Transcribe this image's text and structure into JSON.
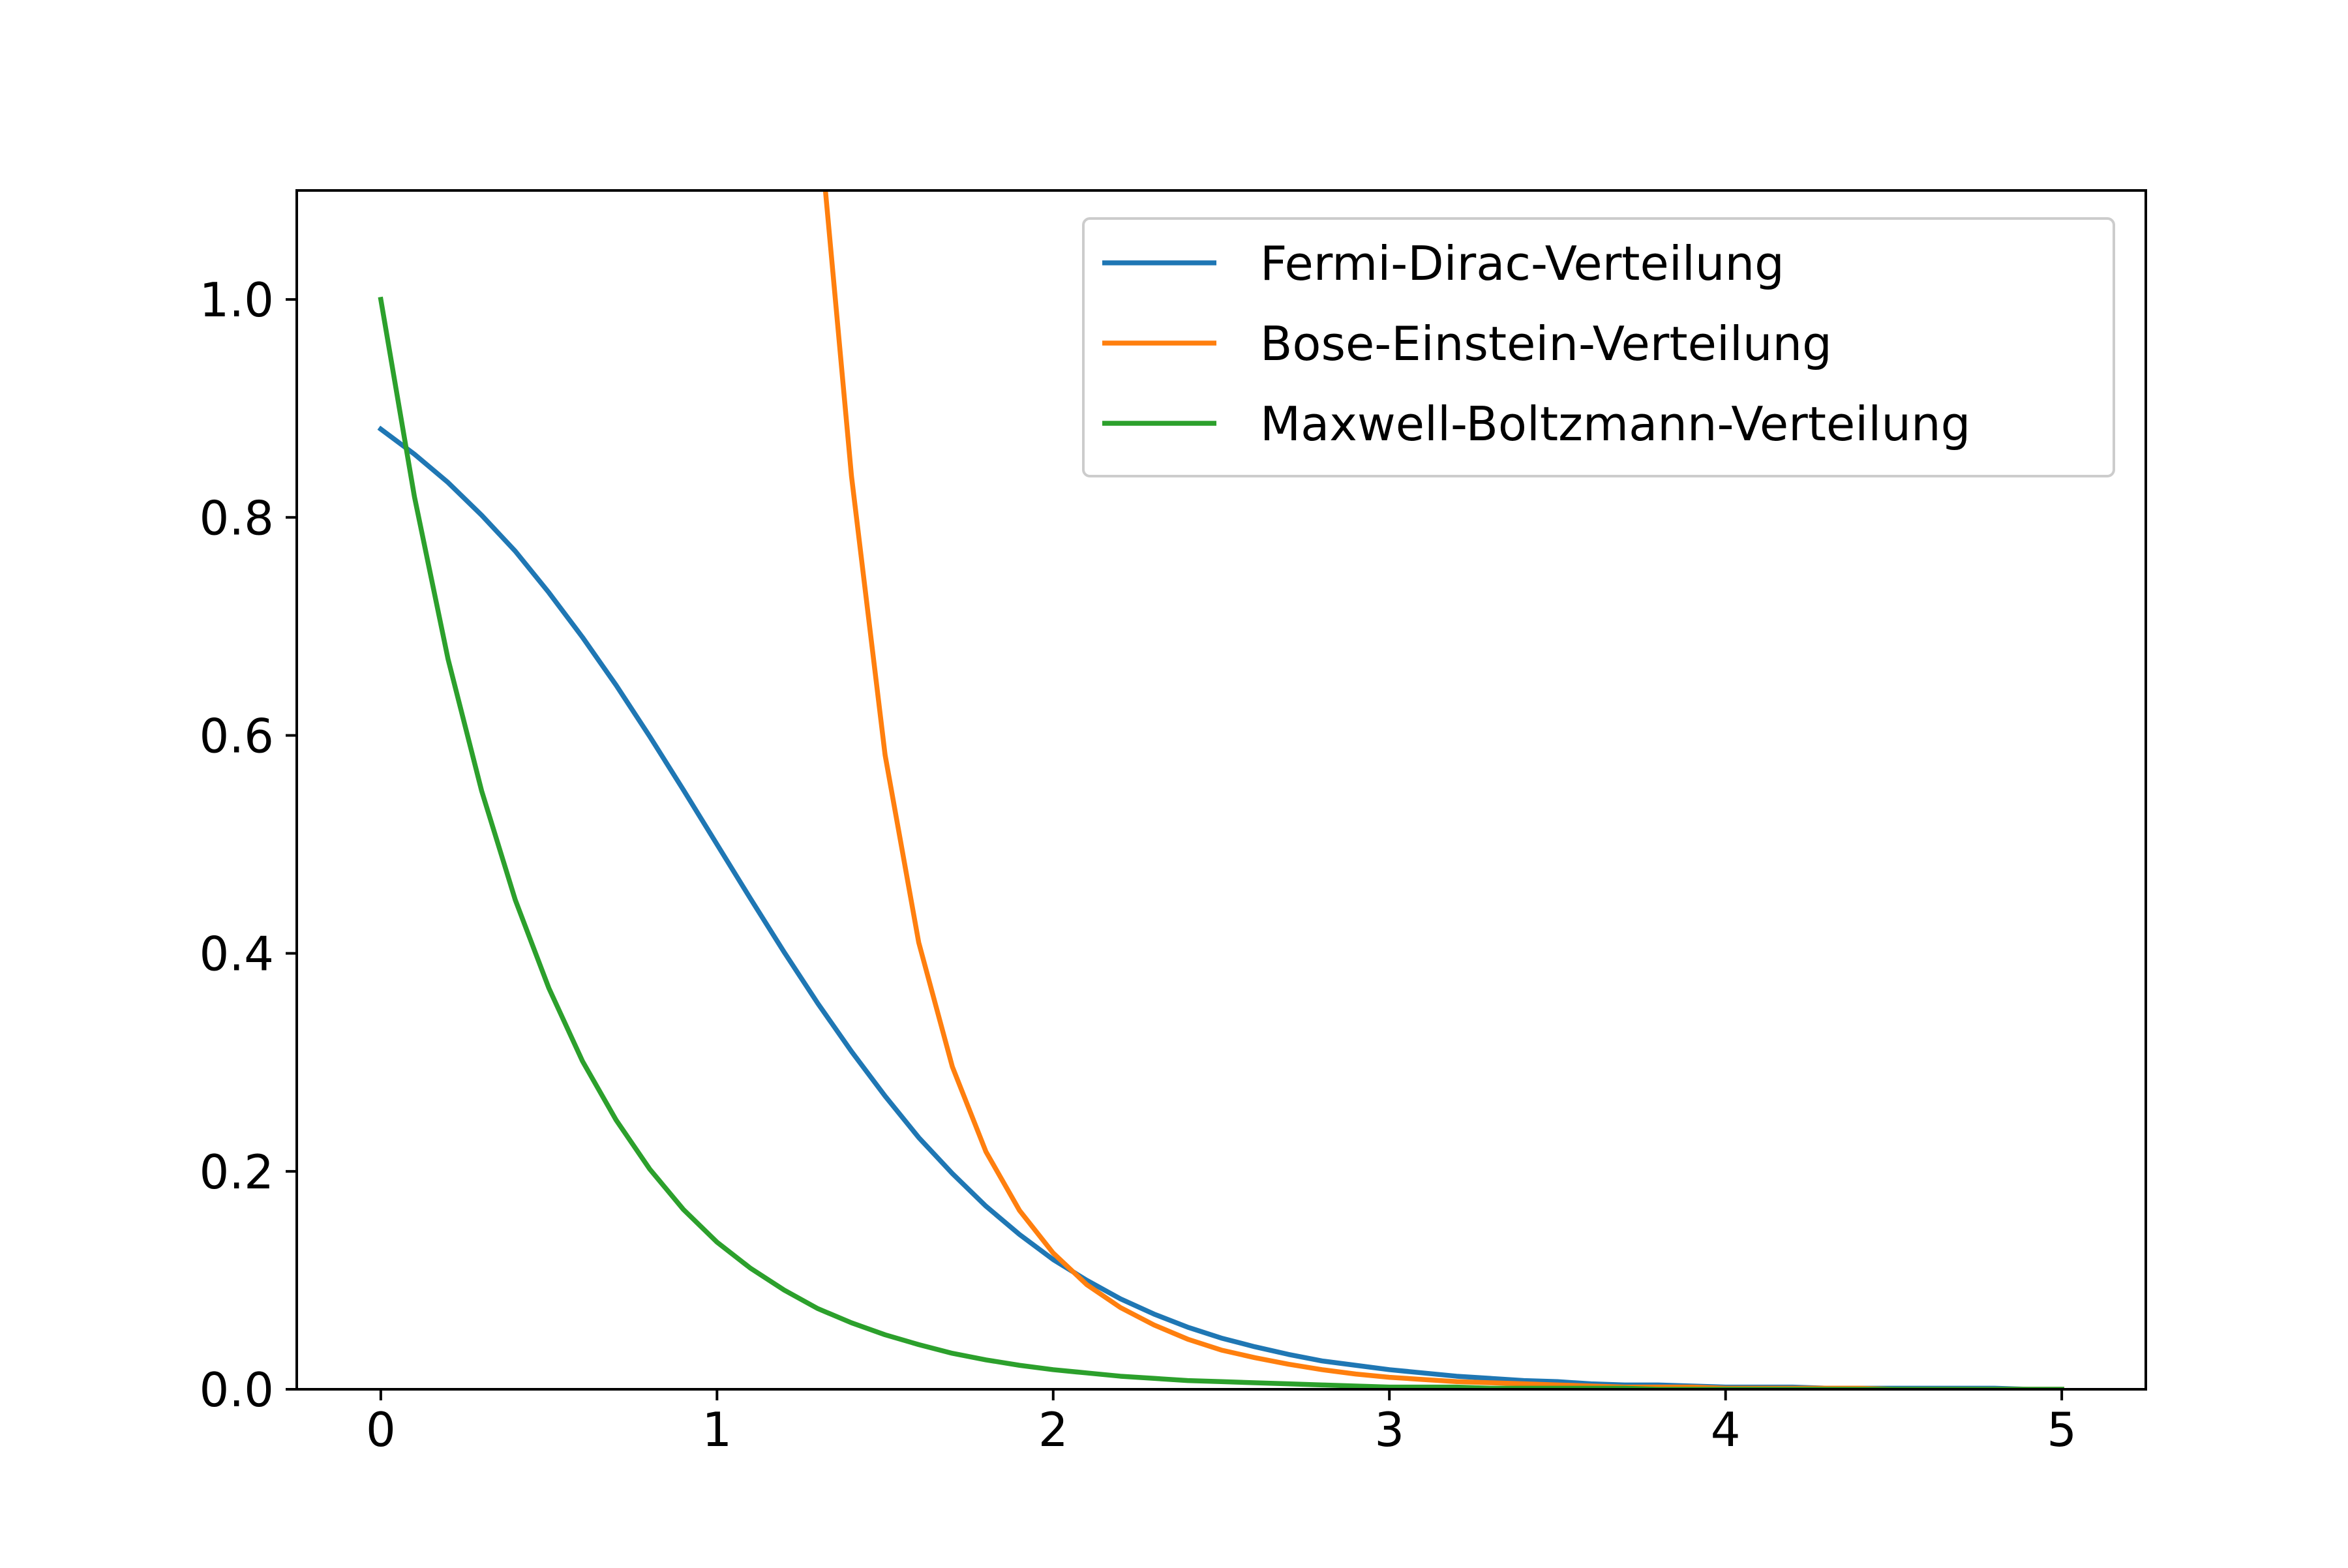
{
  "chart_data": {
    "type": "line",
    "title": "",
    "xlabel": "",
    "ylabel": "",
    "xlim": [
      -0.25,
      5.25
    ],
    "ylim": [
      0.0,
      1.1
    ],
    "x_ticks": [
      0,
      1,
      2,
      3,
      4,
      5
    ],
    "x_tick_labels": [
      "0",
      "1",
      "2",
      "3",
      "4",
      "5"
    ],
    "y_ticks": [
      0.0,
      0.2,
      0.4,
      0.6,
      0.8,
      1.0
    ],
    "y_tick_labels": [
      "0.0",
      "0.2",
      "0.4",
      "0.6",
      "0.8",
      "1.0"
    ],
    "grid": false,
    "legend_position": "top-right",
    "x": [
      0.0,
      0.1,
      0.2,
      0.3,
      0.4,
      0.5,
      0.6,
      0.7,
      0.8,
      0.9,
      1.0,
      1.1,
      1.2,
      1.3,
      1.4,
      1.5,
      1.6,
      1.7,
      1.8,
      1.9,
      2.0,
      2.1,
      2.2,
      2.3,
      2.4,
      2.5,
      2.6,
      2.7,
      2.8,
      2.9,
      3.0,
      3.1,
      3.2,
      3.3,
      3.4,
      3.5,
      3.6,
      3.7,
      3.8,
      3.9,
      4.0,
      4.1,
      4.2,
      4.3,
      4.4,
      4.5,
      4.6,
      4.7,
      4.8,
      4.9,
      5.0
    ],
    "series": [
      {
        "name": "Fermi-Dirac-Verteilung",
        "color": "#1f77b4",
        "values": [
          0.881,
          0.858,
          0.832,
          0.802,
          0.769,
          0.731,
          0.69,
          0.646,
          0.599,
          0.55,
          0.5,
          0.45,
          0.401,
          0.354,
          0.31,
          0.269,
          0.231,
          0.198,
          0.168,
          0.142,
          0.119,
          0.1,
          0.083,
          0.069,
          0.057,
          0.047,
          0.039,
          0.032,
          0.026,
          0.022,
          0.018,
          0.015,
          0.012,
          0.01,
          0.008,
          0.007,
          0.005,
          0.004,
          0.004,
          0.003,
          0.002,
          0.002,
          0.002,
          0.001,
          0.001,
          0.001,
          0.001,
          0.001,
          0.001,
          0.0,
          0.0
        ]
      },
      {
        "name": "Bose-Einstein-Verteilung",
        "color": "#ff7f0e",
        "values": [
          null,
          null,
          null,
          null,
          null,
          null,
          null,
          null,
          null,
          null,
          null,
          null,
          null,
          1.176,
          0.838,
          0.582,
          0.41,
          0.296,
          0.218,
          0.164,
          0.125,
          0.096,
          0.075,
          0.059,
          0.046,
          0.036,
          0.029,
          0.023,
          0.018,
          0.014,
          0.011,
          0.009,
          0.007,
          0.006,
          0.005,
          0.004,
          0.003,
          0.002,
          0.002,
          0.002,
          0.001,
          0.001,
          0.001,
          0.001,
          0.001,
          0.0,
          0.0,
          0.0,
          0.0,
          0.0,
          0.0
        ]
      },
      {
        "name": "Maxwell-Boltzmann-Verteilung",
        "color": "#2ca02c",
        "values": [
          1.0,
          0.819,
          0.67,
          0.549,
          0.449,
          0.368,
          0.301,
          0.247,
          0.202,
          0.165,
          0.135,
          0.111,
          0.091,
          0.074,
          0.061,
          0.05,
          0.041,
          0.033,
          0.027,
          0.022,
          0.018,
          0.015,
          0.012,
          0.01,
          0.008,
          0.007,
          0.006,
          0.005,
          0.004,
          0.003,
          0.002,
          0.002,
          0.002,
          0.001,
          0.001,
          0.001,
          0.001,
          0.001,
          0.0,
          0.0,
          0.0,
          0.0,
          0.0,
          0.0,
          0.0,
          0.0,
          0.0,
          0.0,
          0.0,
          0.0,
          0.0
        ]
      }
    ]
  }
}
